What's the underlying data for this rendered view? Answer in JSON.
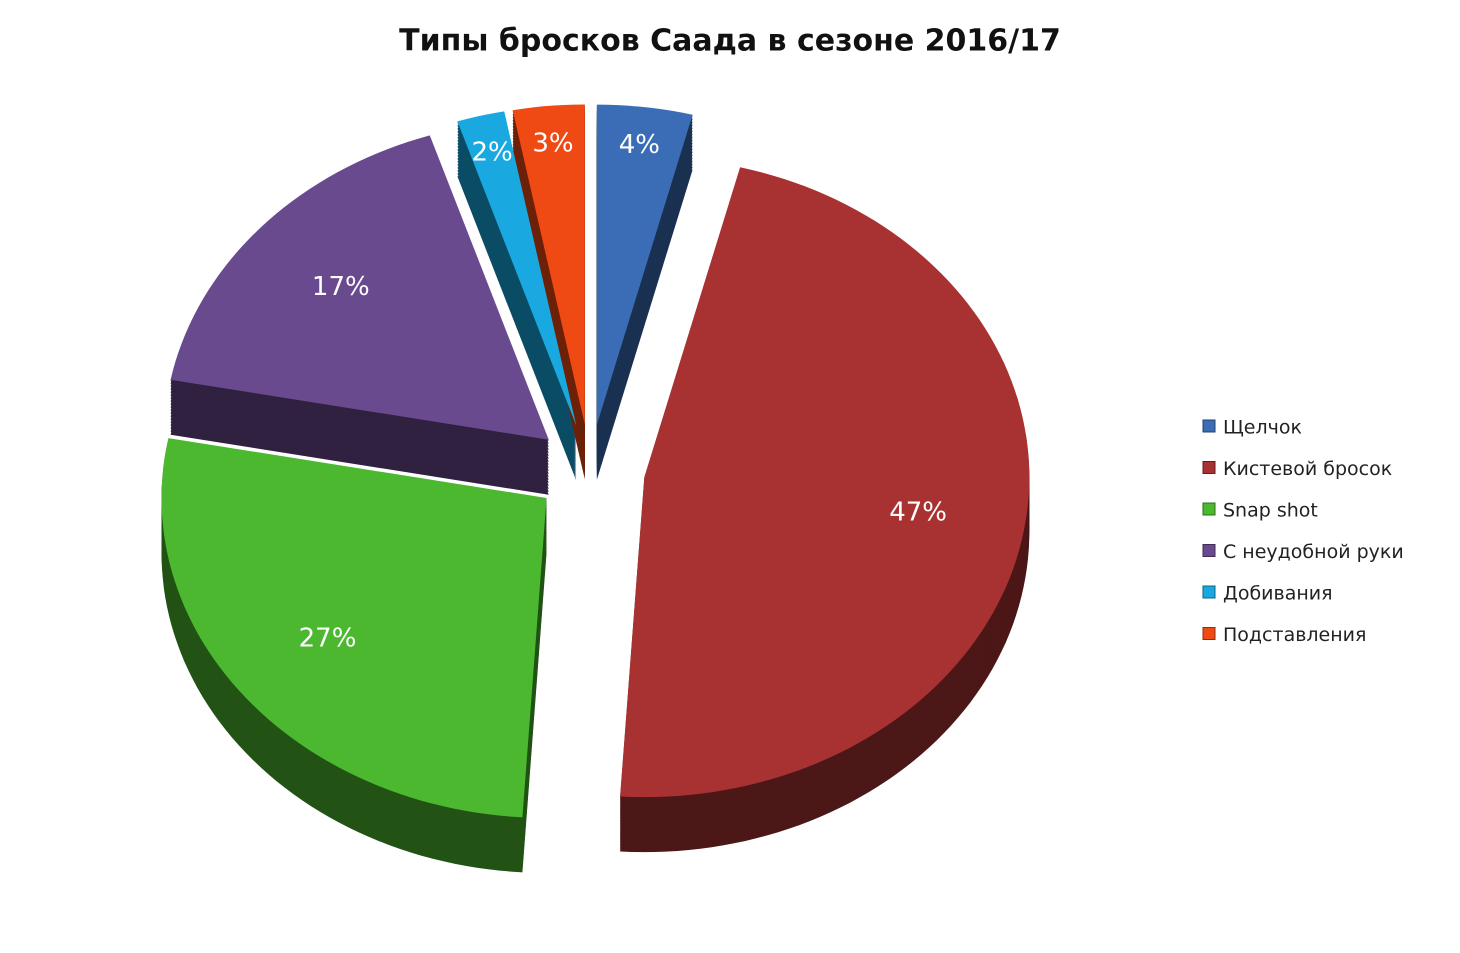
{
  "chart_data": {
    "type": "pie",
    "title": "Типы бросков Саада в сезоне 2016/17",
    "categories": [
      "Щелчок",
      "Кистевой бросок",
      "Snap shot",
      "С неудобной руки",
      "Добивания",
      "Подставления"
    ],
    "values": [
      4,
      47,
      27,
      17,
      2,
      3
    ],
    "value_labels": [
      "4%",
      "47%",
      "27%",
      "17%",
      "2%",
      "3%"
    ],
    "colors": [
      "#3a6db5",
      "#a83232",
      "#4cb82f",
      "#6a4a8f",
      "#19a8e0",
      "#f04a14"
    ],
    "legend": "right"
  }
}
